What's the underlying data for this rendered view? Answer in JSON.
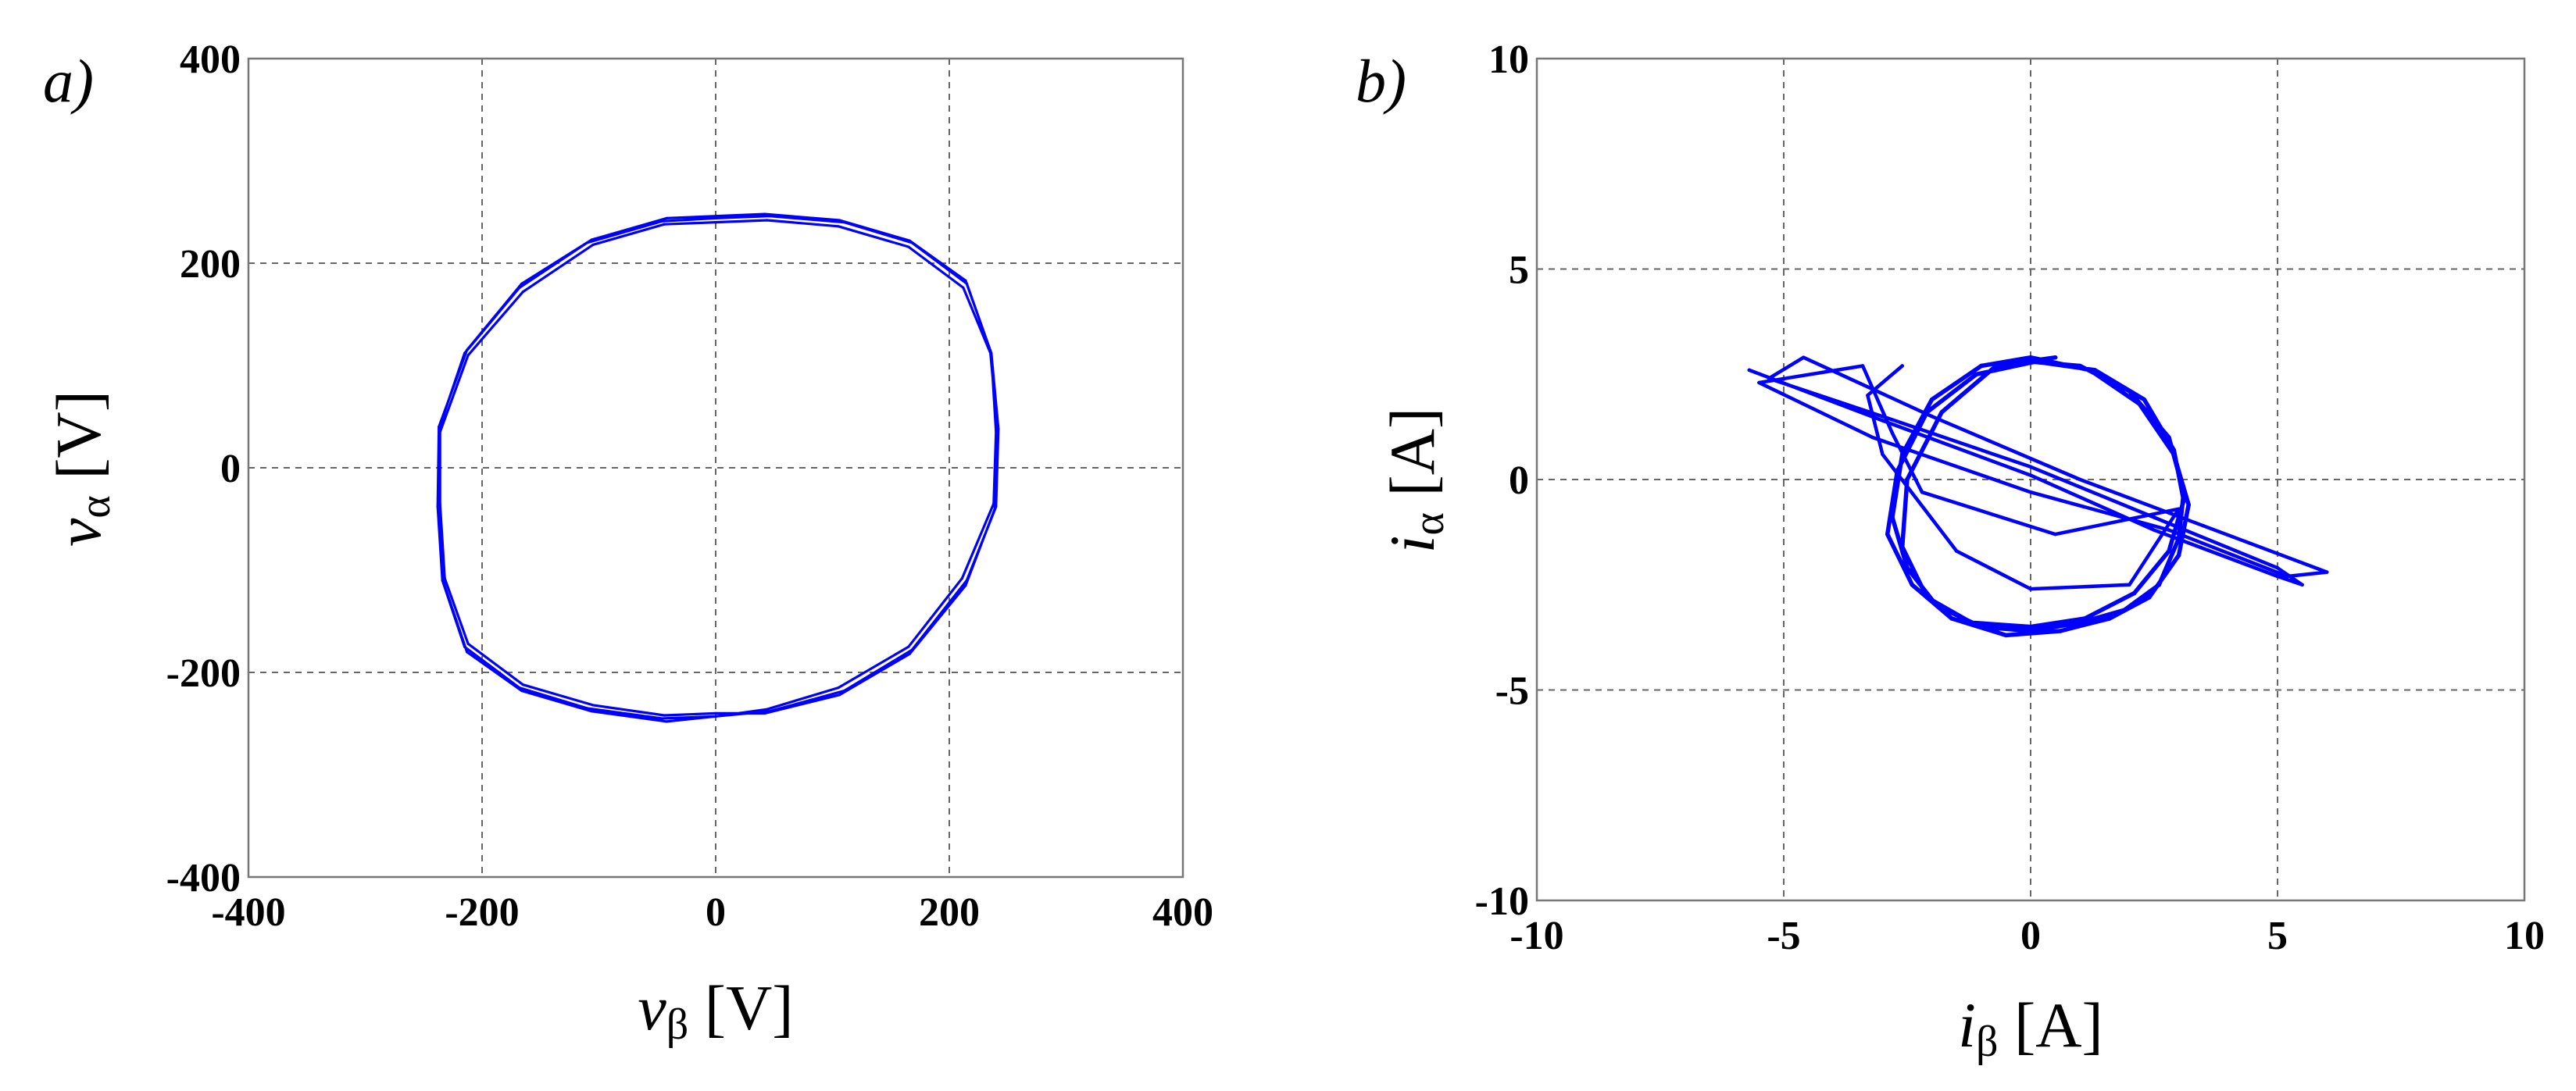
{
  "chart_data": [
    {
      "type": "line",
      "panel_label": "a)",
      "xlabel_var": "v",
      "xlabel_sub": "β",
      "xlabel_unit": " [V]",
      "ylabel_var": "v",
      "ylabel_sub": "α",
      "ylabel_unit": " [V]",
      "xlim": [
        -400,
        400
      ],
      "ylim": [
        -400,
        400
      ],
      "xticks": [
        -400,
        -200,
        0,
        200,
        400
      ],
      "yticks": [
        -400,
        -200,
        0,
        200,
        400
      ],
      "grid": true,
      "color": "#0000ff",
      "series": [
        {
          "description_source": "trajectory",
          "x": [
            0,
            46,
            110,
            168,
            215,
            240,
            242,
            236,
            215,
            168,
            110,
            46,
            0,
            -46,
            -110,
            -168,
            -215,
            -237,
            -238,
            -234,
            -215,
            -168,
            -110,
            -46,
            0,
            44,
            105,
            165,
            211,
            238,
            240,
            236,
            212,
            165,
            105,
            44,
            0,
            -44,
            -105,
            -165,
            -212,
            -236,
            -236,
            -232,
            -212,
            -165,
            -105,
            -44,
            0,
            42,
            106,
            166,
            214,
            239,
            241,
            235,
            214,
            166,
            106,
            42,
            0,
            -42,
            -106,
            -166,
            -213,
            -237,
            -237,
            -233,
            -213,
            -166,
            -106,
            -42,
            0
          ],
          "y": [
            -243,
            -238,
            -218,
            -178,
            -110,
            -38,
            38,
            112,
            180,
            220,
            240,
            246,
            244,
            241,
            220,
            176,
            112,
            38,
            -38,
            -110,
            -175,
            -215,
            -235,
            -245,
            -243,
            -236,
            -215,
            -175,
            -108,
            -35,
            35,
            110,
            176,
            216,
            236,
            242,
            240,
            238,
            218,
            172,
            110,
            35,
            -35,
            -108,
            -172,
            -212,
            -232,
            -242,
            -240,
            -240,
            -222,
            -182,
            -115,
            -40,
            40,
            115,
            183,
            222,
            242,
            248,
            246,
            244,
            223,
            180,
            115,
            40,
            -40,
            -112,
            -180,
            -218,
            -238,
            -248,
            -243
          ]
        }
      ]
    },
    {
      "type": "line",
      "panel_label": "b)",
      "xlabel_var": "i",
      "xlabel_sub": "β",
      "xlabel_unit": " [A]",
      "ylabel_var": "i",
      "ylabel_sub": "α",
      "ylabel_unit": " [A]",
      "xlim": [
        -10,
        10
      ],
      "ylim": [
        -10,
        10
      ],
      "xticks": [
        -10,
        -5,
        0,
        5,
        10
      ],
      "yticks": [
        -10,
        -5,
        0,
        5,
        10
      ],
      "grid": true,
      "color": "#0000ff",
      "series": [
        {
          "description_source": "trajectory",
          "x": [
            0,
            1.0,
            2.0,
            2.8,
            3.1,
            3.0,
            2.6,
            1.9,
            1.0,
            0,
            -1.0,
            -1.9,
            -2.5,
            -2.8,
            -2.6,
            -2.0,
            -1.0,
            0,
            1.2,
            2.2,
            2.9,
            3.2,
            3.0,
            2.4,
            1.6,
            0.6,
            -0.5,
            -1.6,
            -2.4,
            -2.9,
            -2.7,
            -2.1,
            -1.1,
            0.1,
            1.3,
            2.3,
            2.9,
            3.1,
            2.8,
            2.1,
            1.1,
            0,
            -1.2,
            -2.1,
            -2.6,
            -2.5,
            -1.8,
            -0.7,
            0.5
          ],
          "y": [
            2.8,
            2.7,
            2.1,
            1.0,
            -0.3,
            -1.4,
            -2.5,
            -3.1,
            -3.4,
            -3.6,
            -3.5,
            -3.0,
            -2.1,
            -0.9,
            0.6,
            1.9,
            2.7,
            2.9,
            2.6,
            1.8,
            0.6,
            -0.6,
            -1.8,
            -2.8,
            -3.3,
            -3.6,
            -3.7,
            -3.3,
            -2.5,
            -1.3,
            0.2,
            1.6,
            2.5,
            2.8,
            2.6,
            1.9,
            0.7,
            -0.5,
            -1.7,
            -2.7,
            -3.3,
            -3.5,
            -3.4,
            -2.8,
            -1.6,
            0.0,
            1.6,
            2.7,
            2.9
          ]
        },
        {
          "description_source": "excursions",
          "x": [
            -5.7,
            -3.0,
            0.0,
            2.5,
            5.0,
            5.5,
            5.0,
            2.5,
            0.0,
            -3.0,
            -5.3,
            -4.6,
            -2.0,
            1.0,
            3.5,
            6.0,
            5.2,
            2.8,
            0.0,
            -3.2,
            -5.5,
            -3.4,
            -2.8,
            -2.2,
            0.5,
            3.0,
            2.0,
            0.0,
            -1.5,
            -3.0,
            -3.3,
            -2.6
          ],
          "y": [
            2.6,
            1.4,
            0.1,
            -1.2,
            -2.3,
            -2.5,
            -2.1,
            -0.9,
            0.3,
            1.5,
            2.4,
            2.9,
            1.5,
            0.0,
            -1.1,
            -2.2,
            -2.3,
            -1.2,
            -0.3,
            1.0,
            2.3,
            2.7,
            1.1,
            -0.3,
            -1.3,
            -0.7,
            -2.5,
            -2.6,
            -1.7,
            0.6,
            2.0,
            2.7
          ]
        }
      ]
    }
  ]
}
